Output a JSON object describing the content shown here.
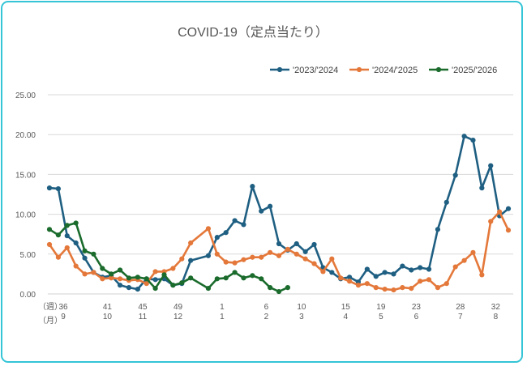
{
  "chart_data": {
    "type": "line",
    "title": "COVID-19（定点当たり）",
    "xlabel": "",
    "ylabel": "",
    "ylim": [
      0,
      25
    ],
    "yticks": [
      0,
      5,
      10,
      15,
      20,
      25
    ],
    "ytick_labels": [
      "0.00",
      "5.00",
      "10.00",
      "15.00",
      "20.00",
      "25.00"
    ],
    "grid": true,
    "legend_position": "top-right",
    "x_row_labels": {
      "week": "（週）",
      "month": "（月）"
    },
    "x_ticks": [
      {
        "index": 0,
        "week": "36",
        "month": "9"
      },
      {
        "index": 5,
        "week": "41",
        "month": "10"
      },
      {
        "index": 9,
        "week": "45",
        "month": "11"
      },
      {
        "index": 13,
        "week": "49",
        "month": "12"
      },
      {
        "index": 18,
        "week": "1",
        "month": "1"
      },
      {
        "index": 23,
        "week": "6",
        "month": "2"
      },
      {
        "index": 27,
        "week": "10",
        "month": "3"
      },
      {
        "index": 32,
        "week": "15",
        "month": "4"
      },
      {
        "index": 36,
        "week": "19",
        "month": "5"
      },
      {
        "index": 40,
        "week": "23",
        "month": "6"
      },
      {
        "index": 45,
        "week": "28",
        "month": "7"
      },
      {
        "index": 49,
        "week": "32",
        "month": "8"
      }
    ],
    "num_weeks": 53,
    "series": [
      {
        "name": "'2023/'2024",
        "color": "#1f5f82",
        "values": [
          13.3,
          13.2,
          7.3,
          6.4,
          4.5,
          2.7,
          2.1,
          2.3,
          1.1,
          0.8,
          0.6,
          1.9,
          1.8,
          1.9,
          1.1,
          1.3,
          4.2,
          null,
          4.8,
          7.1,
          7.7,
          9.2,
          8.7,
          13.5,
          10.4,
          11.0,
          6.3,
          5.5,
          6.3,
          5.3,
          6.2,
          3.3,
          2.7,
          1.9,
          2.1,
          1.5,
          3.1,
          2.2,
          2.7,
          2.5,
          3.5,
          3.0,
          3.3,
          3.1,
          8.1,
          11.5,
          14.9,
          19.8,
          19.3,
          13.3,
          16.1,
          9.8,
          10.7
        ]
      },
      {
        "name": "'2024/'2025",
        "color": "#e4783a",
        "values": [
          6.2,
          4.6,
          5.8,
          3.5,
          2.5,
          2.7,
          1.9,
          2.0,
          1.9,
          1.7,
          1.8,
          1.3,
          2.8,
          2.8,
          3.2,
          4.4,
          6.4,
          null,
          8.2,
          5.0,
          4.0,
          3.9,
          4.3,
          4.6,
          4.6,
          5.2,
          4.8,
          5.6,
          5.0,
          4.4,
          3.8,
          2.8,
          4.4,
          2.0,
          1.6,
          1.1,
          1.3,
          0.8,
          0.6,
          0.5,
          0.8,
          0.7,
          1.6,
          1.8,
          0.8,
          1.3,
          3.4,
          4.2,
          5.2,
          2.4,
          9.1,
          10.3,
          8.0
        ]
      },
      {
        "name": "'2025/'2026",
        "color": "#1a6b2c",
        "values": [
          8.1,
          7.4,
          8.6,
          8.9,
          5.4,
          5.0,
          3.2,
          2.5,
          3.0,
          2.0,
          2.1,
          1.9,
          0.7,
          2.4,
          1.1,
          1.4,
          2.0,
          null,
          0.7,
          1.9,
          2.0,
          2.7,
          2.0,
          2.3,
          1.9,
          0.8,
          0.3,
          0.8
        ]
      }
    ]
  }
}
